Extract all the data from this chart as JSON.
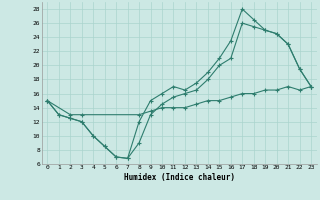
{
  "xlabel": "Humidex (Indice chaleur)",
  "bg_color": "#cce8e4",
  "grid_color": "#aad4ce",
  "line_color": "#2e7d6e",
  "xlim": [
    -0.5,
    23.5
  ],
  "ylim": [
    6,
    29
  ],
  "yticks": [
    6,
    8,
    10,
    12,
    14,
    16,
    18,
    20,
    22,
    24,
    26,
    28
  ],
  "xticks": [
    0,
    1,
    2,
    3,
    4,
    5,
    6,
    7,
    8,
    9,
    10,
    11,
    12,
    13,
    14,
    15,
    16,
    17,
    18,
    19,
    20,
    21,
    22,
    23
  ],
  "line1_x": [
    0,
    1,
    2,
    3,
    4,
    5,
    6,
    7,
    8,
    9,
    10,
    11,
    12,
    13,
    14,
    15,
    16,
    17,
    18,
    19,
    20,
    21,
    22,
    23
  ],
  "line1_y": [
    15,
    13,
    12.5,
    12,
    10,
    8.5,
    7,
    6.8,
    12,
    15,
    16,
    17,
    16.5,
    17.5,
    19,
    21,
    23.5,
    28,
    26.5,
    25,
    24.5,
    23,
    19.5,
    17
  ],
  "line2_x": [
    0,
    1,
    2,
    3,
    4,
    5,
    6,
    7,
    8,
    9,
    10,
    11,
    12,
    13,
    14,
    15,
    16,
    17,
    18,
    19,
    20,
    21,
    22,
    23
  ],
  "line2_y": [
    15,
    13,
    12.5,
    12,
    10,
    8.5,
    7,
    6.8,
    9,
    13,
    14.5,
    15.5,
    16,
    16.5,
    18,
    20,
    21,
    26,
    25.5,
    25,
    24.5,
    23,
    19.5,
    17
  ],
  "line3_x": [
    0,
    2,
    3,
    8,
    9,
    10,
    11,
    12,
    13,
    14,
    15,
    16,
    17,
    18,
    19,
    20,
    21,
    22,
    23
  ],
  "line3_y": [
    15,
    13,
    13,
    13,
    13.5,
    14,
    14,
    14,
    14.5,
    15,
    15,
    15.5,
    16,
    16,
    16.5,
    16.5,
    17,
    16.5,
    17
  ]
}
